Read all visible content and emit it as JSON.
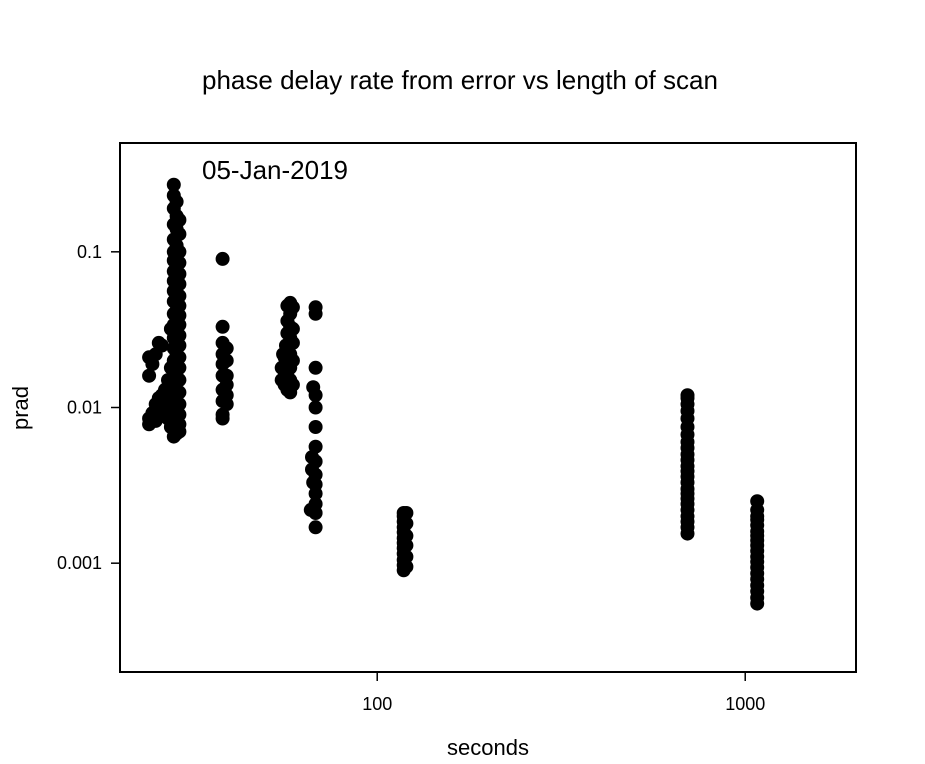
{
  "chart_data": {
    "type": "scatter",
    "title": "phase delay rate from error vs length of scan",
    "subtitle": "05-Jan-2019",
    "xlabel": "seconds",
    "ylabel": "prad",
    "x_scale": "log",
    "y_scale": "log",
    "xlim": [
      20,
      2000
    ],
    "ylim": [
      0.0002,
      0.5
    ],
    "x_ticks": [
      100,
      1000
    ],
    "x_tick_labels": [
      "100",
      "1000"
    ],
    "y_ticks": [
      0.1,
      0.01,
      0.001
    ],
    "y_tick_labels": [
      "0.1",
      "0.01",
      "0.001"
    ],
    "grid": false,
    "marker_color": "#000000",
    "points": [
      {
        "x": 24,
        "y": 0.0078
      },
      {
        "x": 24,
        "y": 0.0085
      },
      {
        "x": 24,
        "y": 0.016
      },
      {
        "x": 24,
        "y": 0.021
      },
      {
        "x": 24.5,
        "y": 0.0092
      },
      {
        "x": 24.5,
        "y": 0.019
      },
      {
        "x": 25,
        "y": 0.0082
      },
      {
        "x": 25,
        "y": 0.0105
      },
      {
        "x": 25,
        "y": 0.022
      },
      {
        "x": 25.5,
        "y": 0.0115
      },
      {
        "x": 25.5,
        "y": 0.026
      },
      {
        "x": 26,
        "y": 0.0095
      },
      {
        "x": 26,
        "y": 0.012
      },
      {
        "x": 26,
        "y": 0.025
      },
      {
        "x": 26.5,
        "y": 0.013
      },
      {
        "x": 27,
        "y": 0.0085
      },
      {
        "x": 27,
        "y": 0.011
      },
      {
        "x": 27,
        "y": 0.015
      },
      {
        "x": 27.5,
        "y": 0.0075
      },
      {
        "x": 27.5,
        "y": 0.009
      },
      {
        "x": 27.5,
        "y": 0.018
      },
      {
        "x": 27.5,
        "y": 0.032
      },
      {
        "x": 28,
        "y": 0.0065
      },
      {
        "x": 28,
        "y": 0.0072
      },
      {
        "x": 28,
        "y": 0.0085
      },
      {
        "x": 28,
        "y": 0.01
      },
      {
        "x": 28,
        "y": 0.012
      },
      {
        "x": 28,
        "y": 0.014
      },
      {
        "x": 28,
        "y": 0.017
      },
      {
        "x": 28,
        "y": 0.02
      },
      {
        "x": 28,
        "y": 0.024
      },
      {
        "x": 28,
        "y": 0.028
      },
      {
        "x": 28,
        "y": 0.034
      },
      {
        "x": 28,
        "y": 0.04
      },
      {
        "x": 28,
        "y": 0.048
      },
      {
        "x": 28,
        "y": 0.056
      },
      {
        "x": 28,
        "y": 0.065
      },
      {
        "x": 28,
        "y": 0.075
      },
      {
        "x": 28,
        "y": 0.088
      },
      {
        "x": 28,
        "y": 0.1
      },
      {
        "x": 28,
        "y": 0.12
      },
      {
        "x": 28,
        "y": 0.15
      },
      {
        "x": 28,
        "y": 0.19
      },
      {
        "x": 28,
        "y": 0.23
      },
      {
        "x": 28,
        "y": 0.27
      },
      {
        "x": 28.5,
        "y": 0.0068
      },
      {
        "x": 28.5,
        "y": 0.008
      },
      {
        "x": 28.5,
        "y": 0.0095
      },
      {
        "x": 28.5,
        "y": 0.011
      },
      {
        "x": 28.5,
        "y": 0.013
      },
      {
        "x": 28.5,
        "y": 0.016
      },
      {
        "x": 28.5,
        "y": 0.019
      },
      {
        "x": 28.5,
        "y": 0.022
      },
      {
        "x": 28.5,
        "y": 0.026
      },
      {
        "x": 28.5,
        "y": 0.03
      },
      {
        "x": 28.5,
        "y": 0.036
      },
      {
        "x": 28.5,
        "y": 0.042
      },
      {
        "x": 28.5,
        "y": 0.05
      },
      {
        "x": 28.5,
        "y": 0.06
      },
      {
        "x": 28.5,
        "y": 0.07
      },
      {
        "x": 28.5,
        "y": 0.082
      },
      {
        "x": 28.5,
        "y": 0.095
      },
      {
        "x": 28.5,
        "y": 0.11
      },
      {
        "x": 28.5,
        "y": 0.14
      },
      {
        "x": 28.5,
        "y": 0.17
      },
      {
        "x": 28.5,
        "y": 0.21
      },
      {
        "x": 29,
        "y": 0.007
      },
      {
        "x": 29,
        "y": 0.0078
      },
      {
        "x": 29,
        "y": 0.009
      },
      {
        "x": 29,
        "y": 0.0105
      },
      {
        "x": 29,
        "y": 0.0125
      },
      {
        "x": 29,
        "y": 0.015
      },
      {
        "x": 29,
        "y": 0.018
      },
      {
        "x": 29,
        "y": 0.021
      },
      {
        "x": 29,
        "y": 0.025
      },
      {
        "x": 29,
        "y": 0.029
      },
      {
        "x": 29,
        "y": 0.034
      },
      {
        "x": 29,
        "y": 0.039
      },
      {
        "x": 29,
        "y": 0.045
      },
      {
        "x": 29,
        "y": 0.052
      },
      {
        "x": 29,
        "y": 0.062
      },
      {
        "x": 29,
        "y": 0.072
      },
      {
        "x": 29,
        "y": 0.085
      },
      {
        "x": 29,
        "y": 0.1
      },
      {
        "x": 29,
        "y": 0.13
      },
      {
        "x": 29,
        "y": 0.16
      },
      {
        "x": 38,
        "y": 0.0085
      },
      {
        "x": 38,
        "y": 0.009
      },
      {
        "x": 38,
        "y": 0.011
      },
      {
        "x": 38,
        "y": 0.013
      },
      {
        "x": 38,
        "y": 0.016
      },
      {
        "x": 38,
        "y": 0.019
      },
      {
        "x": 38,
        "y": 0.022
      },
      {
        "x": 38,
        "y": 0.026
      },
      {
        "x": 38,
        "y": 0.033
      },
      {
        "x": 38,
        "y": 0.09
      },
      {
        "x": 39,
        "y": 0.0105
      },
      {
        "x": 39,
        "y": 0.012
      },
      {
        "x": 39,
        "y": 0.014
      },
      {
        "x": 39,
        "y": 0.016
      },
      {
        "x": 39,
        "y": 0.02
      },
      {
        "x": 39,
        "y": 0.024
      },
      {
        "x": 55,
        "y": 0.015
      },
      {
        "x": 55,
        "y": 0.018
      },
      {
        "x": 55.5,
        "y": 0.022
      },
      {
        "x": 56,
        "y": 0.014
      },
      {
        "x": 56,
        "y": 0.017
      },
      {
        "x": 56,
        "y": 0.021
      },
      {
        "x": 56.5,
        "y": 0.025
      },
      {
        "x": 57,
        "y": 0.013
      },
      {
        "x": 57,
        "y": 0.016
      },
      {
        "x": 57,
        "y": 0.019
      },
      {
        "x": 57,
        "y": 0.024
      },
      {
        "x": 57,
        "y": 0.03
      },
      {
        "x": 57,
        "y": 0.036
      },
      {
        "x": 57,
        "y": 0.045
      },
      {
        "x": 58,
        "y": 0.0125
      },
      {
        "x": 58,
        "y": 0.015
      },
      {
        "x": 58,
        "y": 0.018
      },
      {
        "x": 58,
        "y": 0.022
      },
      {
        "x": 58,
        "y": 0.028
      },
      {
        "x": 58,
        "y": 0.033
      },
      {
        "x": 58,
        "y": 0.04
      },
      {
        "x": 58,
        "y": 0.047
      },
      {
        "x": 59,
        "y": 0.014
      },
      {
        "x": 59,
        "y": 0.02
      },
      {
        "x": 59,
        "y": 0.026
      },
      {
        "x": 59,
        "y": 0.032
      },
      {
        "x": 59,
        "y": 0.044
      },
      {
        "x": 66,
        "y": 0.0022
      },
      {
        "x": 66.5,
        "y": 0.004
      },
      {
        "x": 66.5,
        "y": 0.0048
      },
      {
        "x": 67,
        "y": 0.0135
      },
      {
        "x": 67,
        "y": 0.0033
      },
      {
        "x": 68,
        "y": 0.0017
      },
      {
        "x": 68,
        "y": 0.0021
      },
      {
        "x": 68,
        "y": 0.0024
      },
      {
        "x": 68,
        "y": 0.0028
      },
      {
        "x": 68,
        "y": 0.0032
      },
      {
        "x": 68,
        "y": 0.0037
      },
      {
        "x": 68,
        "y": 0.0045
      },
      {
        "x": 68,
        "y": 0.0056
      },
      {
        "x": 68,
        "y": 0.0075
      },
      {
        "x": 68,
        "y": 0.01
      },
      {
        "x": 68,
        "y": 0.012
      },
      {
        "x": 68,
        "y": 0.018
      },
      {
        "x": 68,
        "y": 0.04
      },
      {
        "x": 68,
        "y": 0.044
      },
      {
        "x": 118,
        "y": 0.0009
      },
      {
        "x": 118,
        "y": 0.00097
      },
      {
        "x": 118,
        "y": 0.00105
      },
      {
        "x": 118,
        "y": 0.00115
      },
      {
        "x": 118,
        "y": 0.00125
      },
      {
        "x": 118,
        "y": 0.00135
      },
      {
        "x": 118,
        "y": 0.00145
      },
      {
        "x": 118,
        "y": 0.00158
      },
      {
        "x": 118,
        "y": 0.0017
      },
      {
        "x": 118,
        "y": 0.00185
      },
      {
        "x": 118,
        "y": 0.002
      },
      {
        "x": 118,
        "y": 0.0021
      },
      {
        "x": 120,
        "y": 0.00095
      },
      {
        "x": 120,
        "y": 0.0011
      },
      {
        "x": 120,
        "y": 0.0013
      },
      {
        "x": 120,
        "y": 0.0015
      },
      {
        "x": 120,
        "y": 0.0018
      },
      {
        "x": 120,
        "y": 0.0021
      },
      {
        "x": 697,
        "y": 0.00155
      },
      {
        "x": 697,
        "y": 0.0017
      },
      {
        "x": 697,
        "y": 0.00185
      },
      {
        "x": 697,
        "y": 0.002
      },
      {
        "x": 697,
        "y": 0.0022
      },
      {
        "x": 697,
        "y": 0.0024
      },
      {
        "x": 697,
        "y": 0.0026
      },
      {
        "x": 697,
        "y": 0.0028
      },
      {
        "x": 697,
        "y": 0.003
      },
      {
        "x": 697,
        "y": 0.0033
      },
      {
        "x": 697,
        "y": 0.0036
      },
      {
        "x": 697,
        "y": 0.0039
      },
      {
        "x": 697,
        "y": 0.0042
      },
      {
        "x": 697,
        "y": 0.0046
      },
      {
        "x": 697,
        "y": 0.005
      },
      {
        "x": 697,
        "y": 0.0055
      },
      {
        "x": 697,
        "y": 0.006
      },
      {
        "x": 697,
        "y": 0.0067
      },
      {
        "x": 697,
        "y": 0.0075
      },
      {
        "x": 697,
        "y": 0.0085
      },
      {
        "x": 697,
        "y": 0.0095
      },
      {
        "x": 697,
        "y": 0.0105
      },
      {
        "x": 697,
        "y": 0.0115
      },
      {
        "x": 697,
        "y": 0.012
      },
      {
        "x": 1078,
        "y": 0.00055
      },
      {
        "x": 1078,
        "y": 0.0006
      },
      {
        "x": 1078,
        "y": 0.00066
      },
      {
        "x": 1078,
        "y": 0.00072
      },
      {
        "x": 1078,
        "y": 0.00079
      },
      {
        "x": 1078,
        "y": 0.00086
      },
      {
        "x": 1078,
        "y": 0.00094
      },
      {
        "x": 1078,
        "y": 0.00102
      },
      {
        "x": 1078,
        "y": 0.0011
      },
      {
        "x": 1078,
        "y": 0.0012
      },
      {
        "x": 1078,
        "y": 0.0013
      },
      {
        "x": 1078,
        "y": 0.0014
      },
      {
        "x": 1078,
        "y": 0.0015
      },
      {
        "x": 1078,
        "y": 0.0016
      },
      {
        "x": 1078,
        "y": 0.00175
      },
      {
        "x": 1078,
        "y": 0.0019
      },
      {
        "x": 1078,
        "y": 0.002
      },
      {
        "x": 1078,
        "y": 0.0022
      },
      {
        "x": 1078,
        "y": 0.0025
      }
    ]
  }
}
